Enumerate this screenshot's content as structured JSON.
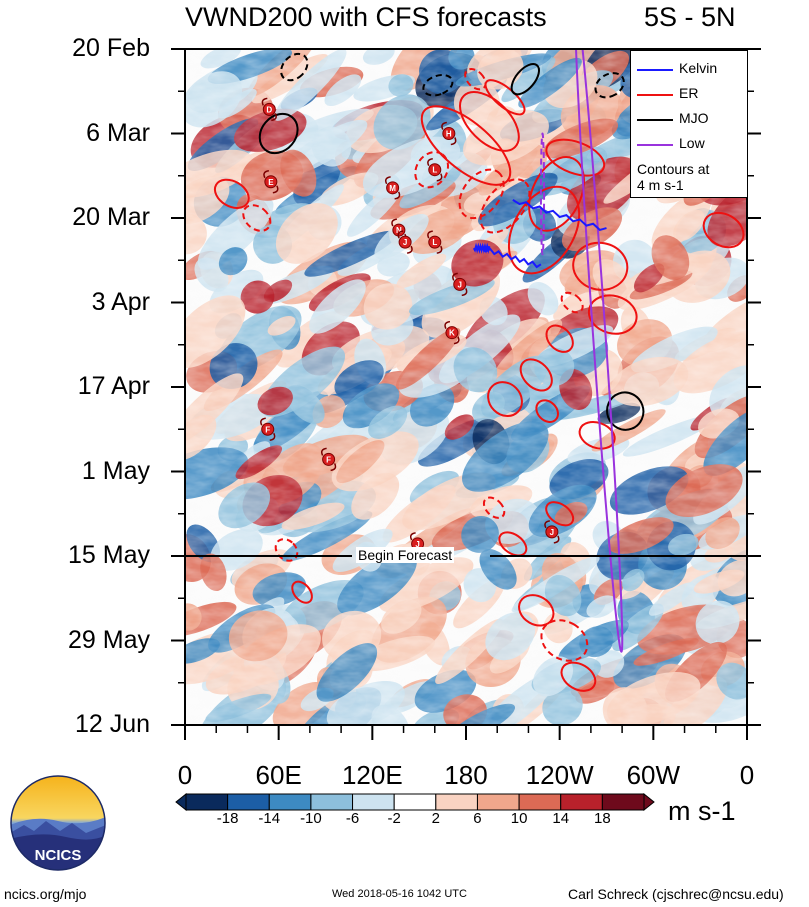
{
  "chart_data": {
    "type": "heatmap",
    "title": "VWND200 with CFS forecasts",
    "region": "5S - 5N",
    "x_ticks": [
      "0",
      "60E",
      "120E",
      "180",
      "120W",
      "60W",
      "0"
    ],
    "y_ticks": [
      "20 Feb",
      "6 Mar",
      "20 Mar",
      "3 Apr",
      "17 Apr",
      "1 May",
      "15 May",
      "29 May",
      "12 Jun"
    ],
    "xlim_deg_east": [
      0,
      360
    ],
    "ylim_days_since_20feb": [
      0,
      112
    ],
    "forecast_start_day": 84,
    "forecast_label": "Begin Forecast",
    "colorbar": {
      "ticks": [
        "-18",
        "-14",
        "-10",
        "-6",
        "-2",
        "2",
        "6",
        "10",
        "14",
        "18"
      ],
      "units": "m s-1",
      "colors": [
        "#0a2a5c",
        "#1c5ea6",
        "#3d8ac2",
        "#8dbfdc",
        "#cde3f0",
        "#ffffff",
        "#f9d3c2",
        "#f0a78c",
        "#dc6a55",
        "#b8212b",
        "#6e0a1c"
      ]
    },
    "legend": {
      "entries": [
        {
          "name": "Kelvin",
          "color": "#1a1aff"
        },
        {
          "name": "ER",
          "color": "#ee1111"
        },
        {
          "name": "MJO",
          "color": "#000000"
        },
        {
          "name": "Low",
          "color": "#9933dd"
        }
      ],
      "note_line1": "Contours at",
      "note_line2": "4 m s-1"
    },
    "contours": [
      {
        "type": "ER",
        "lon": 205,
        "day": 8,
        "w": 12,
        "h": 8,
        "angle": -50,
        "dashed": false
      },
      {
        "type": "ER",
        "lon": 195,
        "day": 12,
        "w": 26,
        "h": 12,
        "angle": -45,
        "dashed": false
      },
      {
        "type": "ER",
        "lon": 180,
        "day": 16,
        "w": 30,
        "h": 18,
        "angle": -50,
        "dashed": false
      },
      {
        "type": "ER",
        "lon": 205,
        "day": 26,
        "w": 40,
        "h": 6,
        "angle": -50,
        "dashed": true
      },
      {
        "type": "ER",
        "lon": 190,
        "day": 24,
        "w": 35,
        "h": 6,
        "angle": -52,
        "dashed": true
      },
      {
        "type": "ER",
        "lon": 230,
        "day": 30,
        "w": 60,
        "h": 10,
        "angle": -60,
        "dashed": false
      },
      {
        "type": "ER",
        "lon": 238,
        "day": 24,
        "w": 50,
        "h": 8,
        "angle": -65,
        "dashed": false
      },
      {
        "type": "ER",
        "lon": 250,
        "day": 18,
        "w": 20,
        "h": 10,
        "angle": -70,
        "dashed": false
      },
      {
        "type": "ER",
        "lon": 266,
        "day": 36,
        "w": 30,
        "h": 9,
        "angle": -80,
        "dashed": false
      },
      {
        "type": "ER",
        "lon": 274,
        "day": 44,
        "w": 24,
        "h": 8,
        "angle": -75,
        "dashed": false
      },
      {
        "type": "ER",
        "lon": 264,
        "day": 64,
        "w": 16,
        "h": 6,
        "angle": -70,
        "dashed": false
      },
      {
        "type": "ER",
        "lon": 30,
        "day": 24,
        "w": 16,
        "h": 6,
        "angle": -60,
        "dashed": false
      },
      {
        "type": "ER",
        "lon": 46,
        "day": 28,
        "w": 14,
        "h": 5,
        "angle": -50,
        "dashed": true
      },
      {
        "type": "ER",
        "lon": 345,
        "day": 30,
        "w": 20,
        "h": 7,
        "angle": -60,
        "dashed": false
      },
      {
        "type": "ER",
        "lon": 205,
        "day": 58,
        "w": 20,
        "h": 6,
        "angle": -45,
        "dashed": false
      },
      {
        "type": "ER",
        "lon": 225,
        "day": 54,
        "w": 16,
        "h": 6,
        "angle": -45,
        "dashed": false
      },
      {
        "type": "ER",
        "lon": 240,
        "day": 48,
        "w": 14,
        "h": 5,
        "angle": -45,
        "dashed": false
      },
      {
        "type": "ER",
        "lon": 232,
        "day": 60,
        "w": 12,
        "h": 4,
        "angle": -45,
        "dashed": false
      },
      {
        "type": "ER",
        "lon": 198,
        "day": 76,
        "w": 10,
        "h": 4,
        "angle": -45,
        "dashed": true
      },
      {
        "type": "ER",
        "lon": 210,
        "day": 82,
        "w": 12,
        "h": 5,
        "angle": -55,
        "dashed": false
      },
      {
        "type": "ER",
        "lon": 240,
        "day": 77,
        "w": 12,
        "h": 5,
        "angle": -55,
        "dashed": false
      },
      {
        "type": "ER",
        "lon": 65,
        "day": 83,
        "w": 12,
        "h": 4,
        "angle": -45,
        "dashed": true
      },
      {
        "type": "ER",
        "lon": 75,
        "day": 90,
        "w": 10,
        "h": 4,
        "angle": -40,
        "dashed": false
      },
      {
        "type": "ER",
        "lon": 225,
        "day": 93,
        "w": 18,
        "h": 6,
        "angle": -60,
        "dashed": false
      },
      {
        "type": "ER",
        "lon": 243,
        "day": 98,
        "w": 24,
        "h": 8,
        "angle": -60,
        "dashed": true
      },
      {
        "type": "ER",
        "lon": 252,
        "day": 104,
        "w": 16,
        "h": 6,
        "angle": -60,
        "dashed": false
      },
      {
        "type": "ER",
        "lon": 248,
        "day": 42,
        "w": 10,
        "h": 4,
        "angle": -50,
        "dashed": true
      },
      {
        "type": "ER",
        "lon": 186,
        "day": 5,
        "w": 10,
        "h": 4,
        "angle": -45,
        "dashed": true
      },
      {
        "type": "ER",
        "lon": 158,
        "day": 20,
        "w": 24,
        "h": 5,
        "angle": -55,
        "dashed": true
      },
      {
        "type": "MJO",
        "lon": 70,
        "day": 3,
        "w": 14,
        "h": 5,
        "angle": 45,
        "dashed": true
      },
      {
        "type": "MJO",
        "lon": 60,
        "day": 14,
        "w": 22,
        "h": 7,
        "angle": 40,
        "dashed": false
      },
      {
        "type": "MJO",
        "lon": 162,
        "day": 6,
        "w": 12,
        "h": 5,
        "angle": 70,
        "dashed": true
      },
      {
        "type": "MJO",
        "lon": 218,
        "day": 5,
        "w": 12,
        "h": 6,
        "angle": 40,
        "dashed": false
      },
      {
        "type": "MJO",
        "lon": 272,
        "day": 6,
        "w": 14,
        "h": 5,
        "angle": 60,
        "dashed": true
      },
      {
        "type": "MJO",
        "lon": 282,
        "day": 60,
        "w": 24,
        "h": 6,
        "angle": 70,
        "dashed": false
      },
      {
        "type": "Low",
        "lon": 265,
        "day": 46,
        "w": 8,
        "h": 108,
        "angle": -4,
        "dashed": false
      },
      {
        "type": "Low",
        "lon": 229,
        "day": 24,
        "w": 2,
        "h": 20,
        "angle": 0,
        "dashed": true
      }
    ],
    "kelvin_lines": [
      {
        "lon1": 210,
        "day1": 25,
        "lon2": 270,
        "day2": 30
      },
      {
        "lon1": 190,
        "day1": 33,
        "lon2": 228,
        "day2": 36
      },
      {
        "lon1": 185,
        "day1": 33,
        "lon2": 195,
        "day2": 33
      }
    ],
    "storms": [
      {
        "label": "D",
        "lon": 54,
        "day": 10
      },
      {
        "label": "E",
        "lon": 55,
        "day": 22
      },
      {
        "label": "H",
        "lon": 169,
        "day": 14
      },
      {
        "label": "L",
        "lon": 160,
        "day": 20
      },
      {
        "label": "M",
        "lon": 133,
        "day": 23
      },
      {
        "label": "N",
        "lon": 137,
        "day": 30
      },
      {
        "label": "J",
        "lon": 141,
        "day": 32
      },
      {
        "label": "L",
        "lon": 160,
        "day": 32
      },
      {
        "label": "J",
        "lon": 176,
        "day": 39
      },
      {
        "label": "K",
        "lon": 171,
        "day": 47
      },
      {
        "label": "F",
        "lon": 53,
        "day": 63
      },
      {
        "label": "F",
        "lon": 92,
        "day": 68
      },
      {
        "label": "J",
        "lon": 149,
        "day": 82
      },
      {
        "label": "J",
        "lon": 235,
        "day": 80
      }
    ]
  },
  "footer": {
    "site": "ncics.org/mjo",
    "timestamp": "Wed 2018-05-16 1042 UTC",
    "author": "Carl Schreck (cjschrec@ncsu.edu)"
  },
  "logo": {
    "text": "NCICS"
  }
}
